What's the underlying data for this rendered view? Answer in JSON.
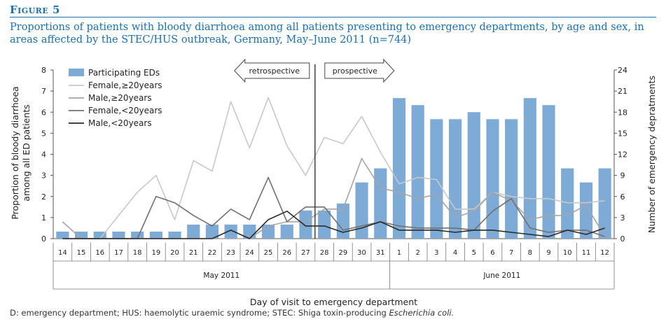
{
  "figure": {
    "label": "Figure 5",
    "title": "Proportions of patients with bloody diarrhoea among all patients presenting to emergency departments, by age and sex, in areas affected by the STEC/HUS outbreak, Germany, May–June 2011 (n=744)",
    "footnote_main": "D: emergency department; HUS: haemolytic uraemic syndrome; STEC: Shiga toxin-producing ",
    "footnote_italic": "Escherichia coli."
  },
  "chart_data": {
    "type": "bar",
    "xlabel": "Day of visit to emergency department",
    "ylabel": "Proportion of bloody diarrhoea among all ED patients",
    "y2label": "Number of emergency depratments",
    "ylim": [
      0,
      8
    ],
    "y2lim": [
      0,
      24
    ],
    "yticks": [
      0,
      1,
      2,
      3,
      4,
      5,
      6,
      7,
      8
    ],
    "y2ticks": [
      0,
      3,
      6,
      9,
      12,
      15,
      18,
      21,
      24
    ],
    "categories": [
      "14",
      "15",
      "16",
      "17",
      "18",
      "19",
      "20",
      "21",
      "22",
      "23",
      "24",
      "25",
      "26",
      "27",
      "28",
      "29",
      "30",
      "31",
      "1",
      "2",
      "3",
      "4",
      "5",
      "6",
      "7",
      "8",
      "9",
      "10",
      "11",
      "12"
    ],
    "month_labels": [
      {
        "label": "May 2011",
        "start": 0,
        "end": 17
      },
      {
        "label": "June 2011",
        "start": 18,
        "end": 29
      }
    ],
    "annotations": {
      "left": "retrospective",
      "right": "prospective",
      "divider_after_index": 13
    },
    "bars": {
      "name": "Participating EDs",
      "axis": "right",
      "color": "#7eaad6",
      "values": [
        1,
        1,
        1,
        1,
        1,
        1,
        1,
        2,
        2,
        2,
        2,
        2,
        2,
        4,
        4,
        5,
        8,
        10,
        20,
        19,
        17,
        17,
        18,
        17,
        17,
        20,
        19,
        10,
        8,
        10
      ]
    },
    "series": [
      {
        "name": "Female,≥20years",
        "color": "#c8c8c8",
        "values": [
          0,
          0,
          0,
          1.1,
          2.2,
          3.0,
          0.9,
          3.7,
          3.2,
          6.5,
          4.3,
          6.7,
          4.4,
          3.0,
          4.8,
          4.5,
          5.8,
          4.1,
          2.6,
          2.9,
          2.8,
          1.4,
          1.4,
          2.2,
          2.0,
          1.9,
          1.9,
          1.7,
          1.7,
          1.8
        ]
      },
      {
        "name": "Male,≥20years",
        "color": "#a5a5a5",
        "values": [
          0.8,
          0,
          0,
          0,
          0,
          0,
          0,
          0,
          0,
          0,
          0,
          0.6,
          0.8,
          0.8,
          1.4,
          1.4,
          3.8,
          2.4,
          2.2,
          1.9,
          2.1,
          1.0,
          1.3,
          2.2,
          1.8,
          0.9,
          1.1,
          1.1,
          1.6,
          0.1
        ]
      },
      {
        "name": "Female,<20years",
        "color": "#707070",
        "values": [
          0,
          0,
          0,
          0,
          0,
          2.0,
          1.7,
          1.1,
          0.6,
          1.4,
          0.9,
          2.9,
          0.8,
          1.5,
          1.5,
          0.4,
          0.6,
          0.8,
          0.6,
          0.5,
          0.5,
          0.5,
          0.4,
          1.3,
          1.9,
          0.5,
          0.3,
          0.4,
          0.4,
          0.1
        ]
      },
      {
        "name": "Male,<20years",
        "color": "#2a2a2a",
        "values": [
          0,
          0,
          0,
          0,
          0,
          0,
          0,
          0,
          0,
          0.4,
          0,
          0.9,
          1.3,
          0.6,
          0.6,
          0.3,
          0.5,
          0.8,
          0.4,
          0.4,
          0.4,
          0.3,
          0.4,
          0.4,
          0.3,
          0.2,
          0.1,
          0.4,
          0.2,
          0.5
        ]
      }
    ]
  }
}
